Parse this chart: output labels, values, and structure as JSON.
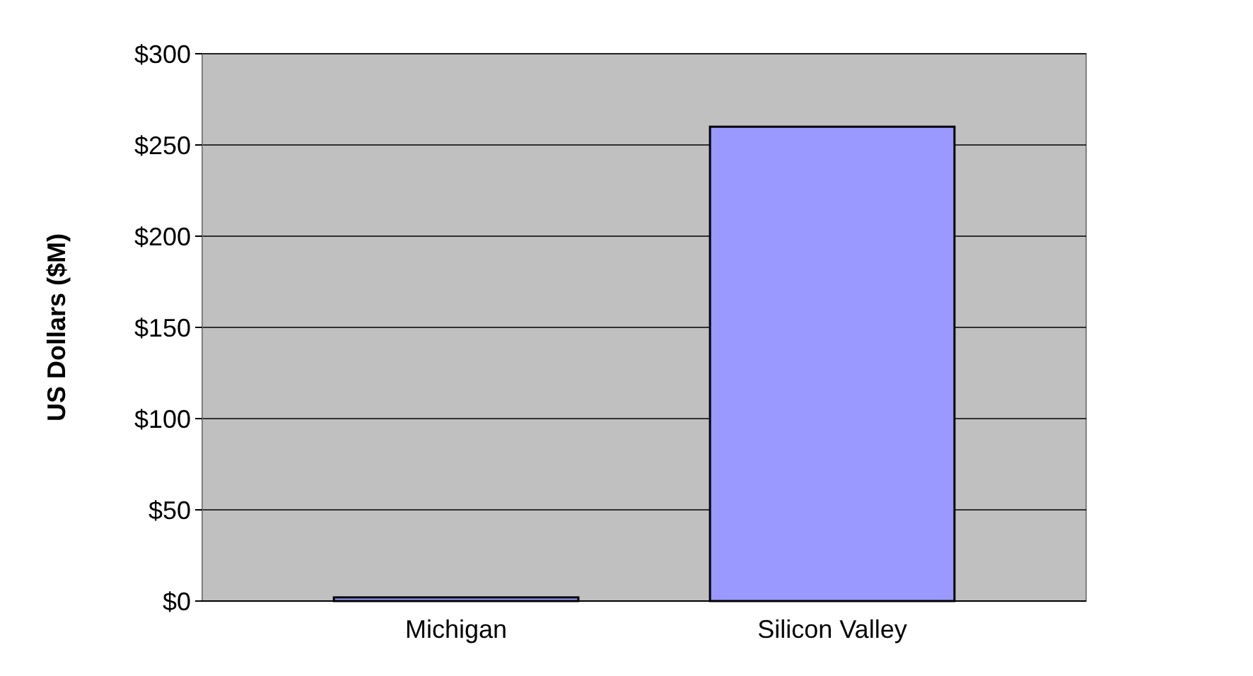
{
  "chart_data": {
    "type": "bar",
    "ylabel": "US Dollars ($M)",
    "categories": [
      "Michigan",
      "Silicon Valley"
    ],
    "values": [
      2,
      260
    ],
    "color": "#9999ff",
    "ylim": [
      0,
      300
    ],
    "yticks": [
      {
        "value": 0,
        "label": "$0"
      },
      {
        "value": 50,
        "label": "$50"
      },
      {
        "value": 100,
        "label": "$100"
      },
      {
        "value": 150,
        "label": "$150"
      },
      {
        "value": 200,
        "label": "$200"
      },
      {
        "value": 250,
        "label": "$250"
      },
      {
        "value": 300,
        "label": "$300"
      }
    ],
    "grid": "y"
  }
}
